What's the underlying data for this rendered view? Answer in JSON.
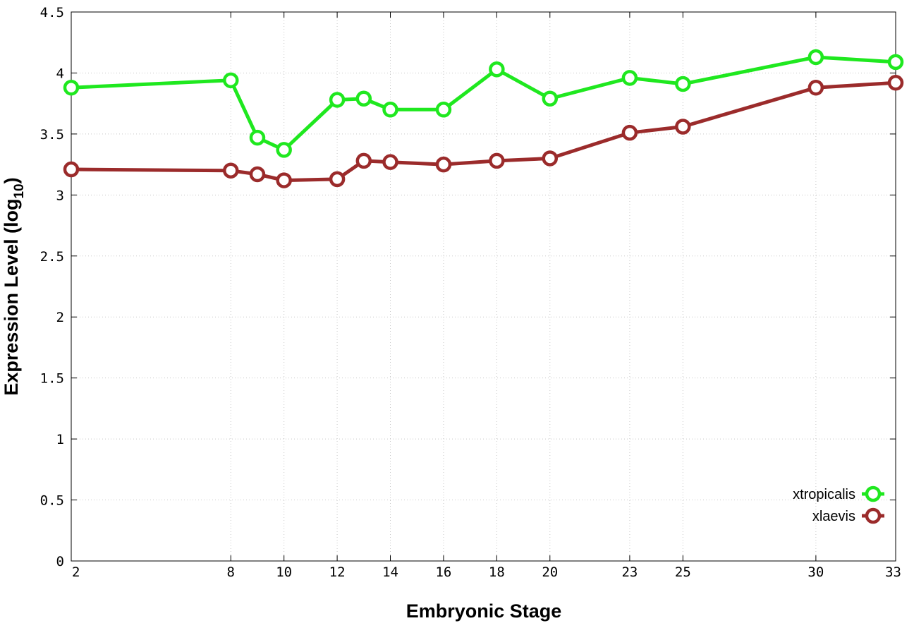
{
  "chart_data": {
    "type": "line",
    "xlabel": "Embryonic Stage",
    "ylabel": "Expression Level (log",
    "ylabel_subscript": "10",
    "ylabel_suffix": ")",
    "xlim": [
      2,
      33
    ],
    "ylim": [
      0,
      4.5
    ],
    "x_ticks": [
      2,
      8,
      10,
      12,
      14,
      16,
      18,
      20,
      23,
      25,
      30,
      33
    ],
    "x_tick_labels": [
      "2",
      "8",
      "10",
      "12",
      "14",
      "16",
      "18",
      "20",
      "23",
      "25",
      "30",
      "33"
    ],
    "y_ticks": [
      0,
      0.5,
      1,
      1.5,
      2,
      2.5,
      3,
      3.5,
      4,
      4.5
    ],
    "y_tick_labels": [
      "0",
      "0.5",
      "1",
      "1.5",
      "2",
      "2.5",
      "3",
      "3.5",
      "4",
      "4.5"
    ],
    "grid": true,
    "legend_position": "bottom-right",
    "x": [
      2,
      8,
      9,
      10,
      12,
      13,
      14,
      16,
      18,
      20,
      23,
      25,
      30,
      33
    ],
    "series": [
      {
        "name": "xtropicalis",
        "color": "#1fe81f",
        "values": [
          3.88,
          3.94,
          3.47,
          3.37,
          3.78,
          3.79,
          3.7,
          3.7,
          4.03,
          3.79,
          3.96,
          3.91,
          4.13,
          4.09
        ]
      },
      {
        "name": "xlaevis",
        "color": "#9b2b2b",
        "values": [
          3.21,
          3.2,
          3.17,
          3.12,
          3.13,
          3.28,
          3.27,
          3.25,
          3.28,
          3.3,
          3.51,
          3.56,
          3.88,
          3.92
        ]
      }
    ]
  }
}
